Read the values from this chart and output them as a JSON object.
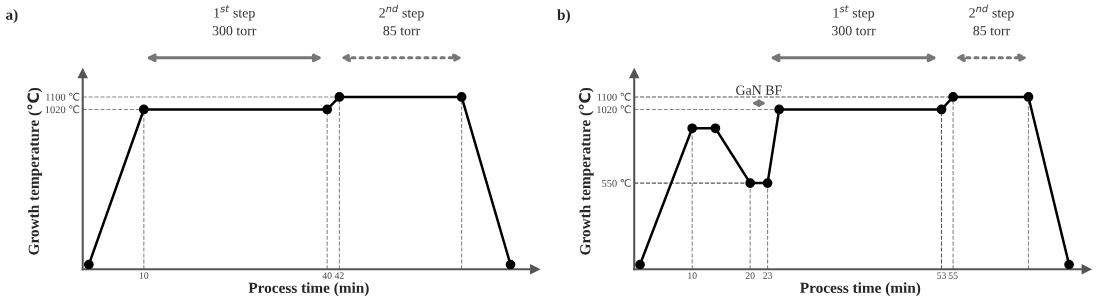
{
  "chart_data": [
    {
      "type": "line",
      "title": "a)",
      "xlabel": "Process time (min)",
      "ylabel": "Growth temperature (℃)",
      "x": [
        1,
        10,
        40,
        42,
        62,
        70
      ],
      "series": [
        {
          "color": "#000000",
          "values": [
            30,
            1020,
            1020,
            1100,
            1100,
            30
          ]
        }
      ],
      "marker": "circle",
      "line_style": "solid",
      "xlim": [
        0,
        74
      ],
      "ylim": [
        0,
        1250
      ],
      "xticks": [
        10,
        40,
        42
      ],
      "yticks": [
        {
          "value": 1020,
          "label": "1020 ℃"
        },
        {
          "value": 1100,
          "label": "1100 ℃"
        }
      ],
      "ref_lines": [
        {
          "axis": "y",
          "value": 1020,
          "color": "#888888",
          "line_style": "dashed"
        },
        {
          "axis": "y",
          "value": 1100,
          "color": "#888888",
          "line_style": "dashed"
        },
        {
          "axis": "x",
          "value": 10,
          "color": "#888888",
          "line_style": "dashed"
        },
        {
          "axis": "x",
          "value": 40,
          "color": "#888888",
          "line_style": "dashed"
        },
        {
          "axis": "x",
          "value": 42,
          "color": "#888888",
          "line_style": "dashed"
        },
        {
          "axis": "x",
          "value": 62,
          "color": "#888888",
          "line_style": "dashed"
        }
      ],
      "annotations": [
        "1$^{st}$ step",
        "300 torr",
        "2$^{nd}$ step",
        "85 torr"
      ]
    },
    {
      "type": "line",
      "title": "b)",
      "xlabel": "Process time (min)",
      "ylabel": "Growth temperature (℃)",
      "x": [
        1,
        10,
        14,
        20,
        23,
        25,
        53,
        55,
        68,
        75
      ],
      "series": [
        {
          "color": "#000000",
          "values": [
            30,
            900,
            900,
            550,
            550,
            1020,
            1020,
            1100,
            1100,
            30
          ]
        }
      ],
      "marker": "circle",
      "line_style": "solid",
      "xlim": [
        0,
        78
      ],
      "ylim": [
        0,
        1250
      ],
      "xticks": [
        10,
        20,
        23,
        53,
        55
      ],
      "yticks": [
        {
          "value": 550,
          "label": "550 ℃"
        },
        {
          "value": 1020,
          "label": "1020 ℃"
        },
        {
          "value": 1100,
          "label": "1100 ℃"
        }
      ],
      "ref_lines": [
        {
          "axis": "y",
          "value": 550,
          "color": "#555555",
          "line_style": "dashed"
        },
        {
          "axis": "y",
          "value": 1020,
          "color": "#888888",
          "line_style": "dashed"
        },
        {
          "axis": "y",
          "value": 1100,
          "color": "#555555",
          "line_style": "dashed"
        },
        {
          "axis": "x",
          "value": 10,
          "color": "#888888",
          "line_style": "dashed"
        },
        {
          "axis": "x",
          "value": 20,
          "color": "#888888",
          "line_style": "dashed"
        },
        {
          "axis": "x",
          "value": 23,
          "color": "#888888",
          "line_style": "dashed"
        },
        {
          "axis": "x",
          "value": 53,
          "color": "#555555",
          "line_style": "dashed"
        },
        {
          "axis": "x",
          "value": 55,
          "color": "#888888",
          "line_style": "dashed"
        },
        {
          "axis": "x",
          "value": 68,
          "color": "#888888",
          "line_style": "dashed"
        }
      ],
      "annotations": [
        "1$^{st}$ step",
        "300 torr",
        "2$^{nd}$ step",
        "85 torr",
        {
          "text": "GaN BF",
          "x": 21.5,
          "y": 1060
        }
      ]
    }
  ]
}
